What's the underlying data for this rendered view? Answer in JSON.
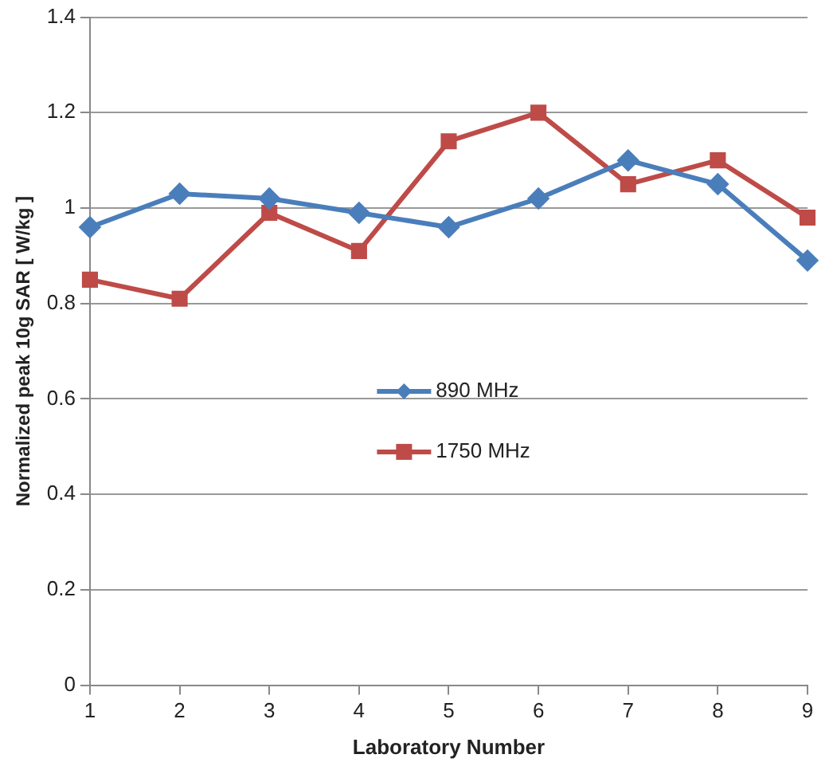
{
  "chart_data": {
    "type": "line",
    "xlabel": "Laboratory Number",
    "ylabel": "Normalized peak 10g SAR [ W/kg ]",
    "categories": [
      "1",
      "2",
      "3",
      "4",
      "5",
      "6",
      "7",
      "8",
      "9"
    ],
    "series": [
      {
        "name": "890 MHz",
        "color": "#4a7ebb",
        "marker": "diamond",
        "values": [
          0.96,
          1.03,
          1.02,
          0.99,
          0.96,
          1.02,
          1.1,
          1.05,
          0.89
        ]
      },
      {
        "name": "1750 MHz",
        "color": "#be4b48",
        "marker": "square",
        "values": [
          0.85,
          0.81,
          0.99,
          0.91,
          1.14,
          1.2,
          1.05,
          1.1,
          0.98
        ]
      }
    ],
    "ylim": [
      0,
      1.4
    ],
    "yticks": [
      0,
      0.2,
      0.4,
      0.6,
      0.8,
      1,
      1.2,
      1.4
    ],
    "grid": "y",
    "legend": "center",
    "line_style": "solid"
  }
}
